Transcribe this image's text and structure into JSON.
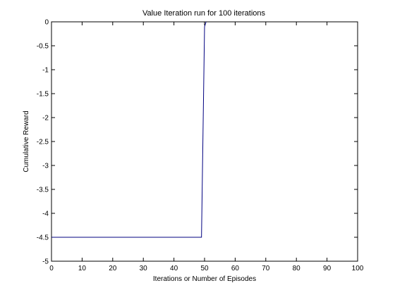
{
  "chart_data": {
    "type": "line",
    "title": "Value Iteration run for 100 iterations",
    "xlabel": "Iterations or Number of Episodes",
    "ylabel": "Cumulative Reward",
    "xlim": [
      0,
      100
    ],
    "ylim": [
      -5,
      0
    ],
    "xticks": [
      0,
      10,
      20,
      30,
      40,
      50,
      60,
      70,
      80,
      90,
      100
    ],
    "yticks": [
      0,
      -0.5,
      -1,
      -1.5,
      -2,
      -2.5,
      -3,
      -3.5,
      -4,
      -4.5,
      -5
    ],
    "grid": false,
    "series": [
      {
        "color": "#000080",
        "x": [
          0,
          49,
          49.5,
          50,
          50.5
        ],
        "y": [
          -4.5,
          -4.5,
          -2.3,
          -0.1,
          0
        ]
      }
    ]
  }
}
